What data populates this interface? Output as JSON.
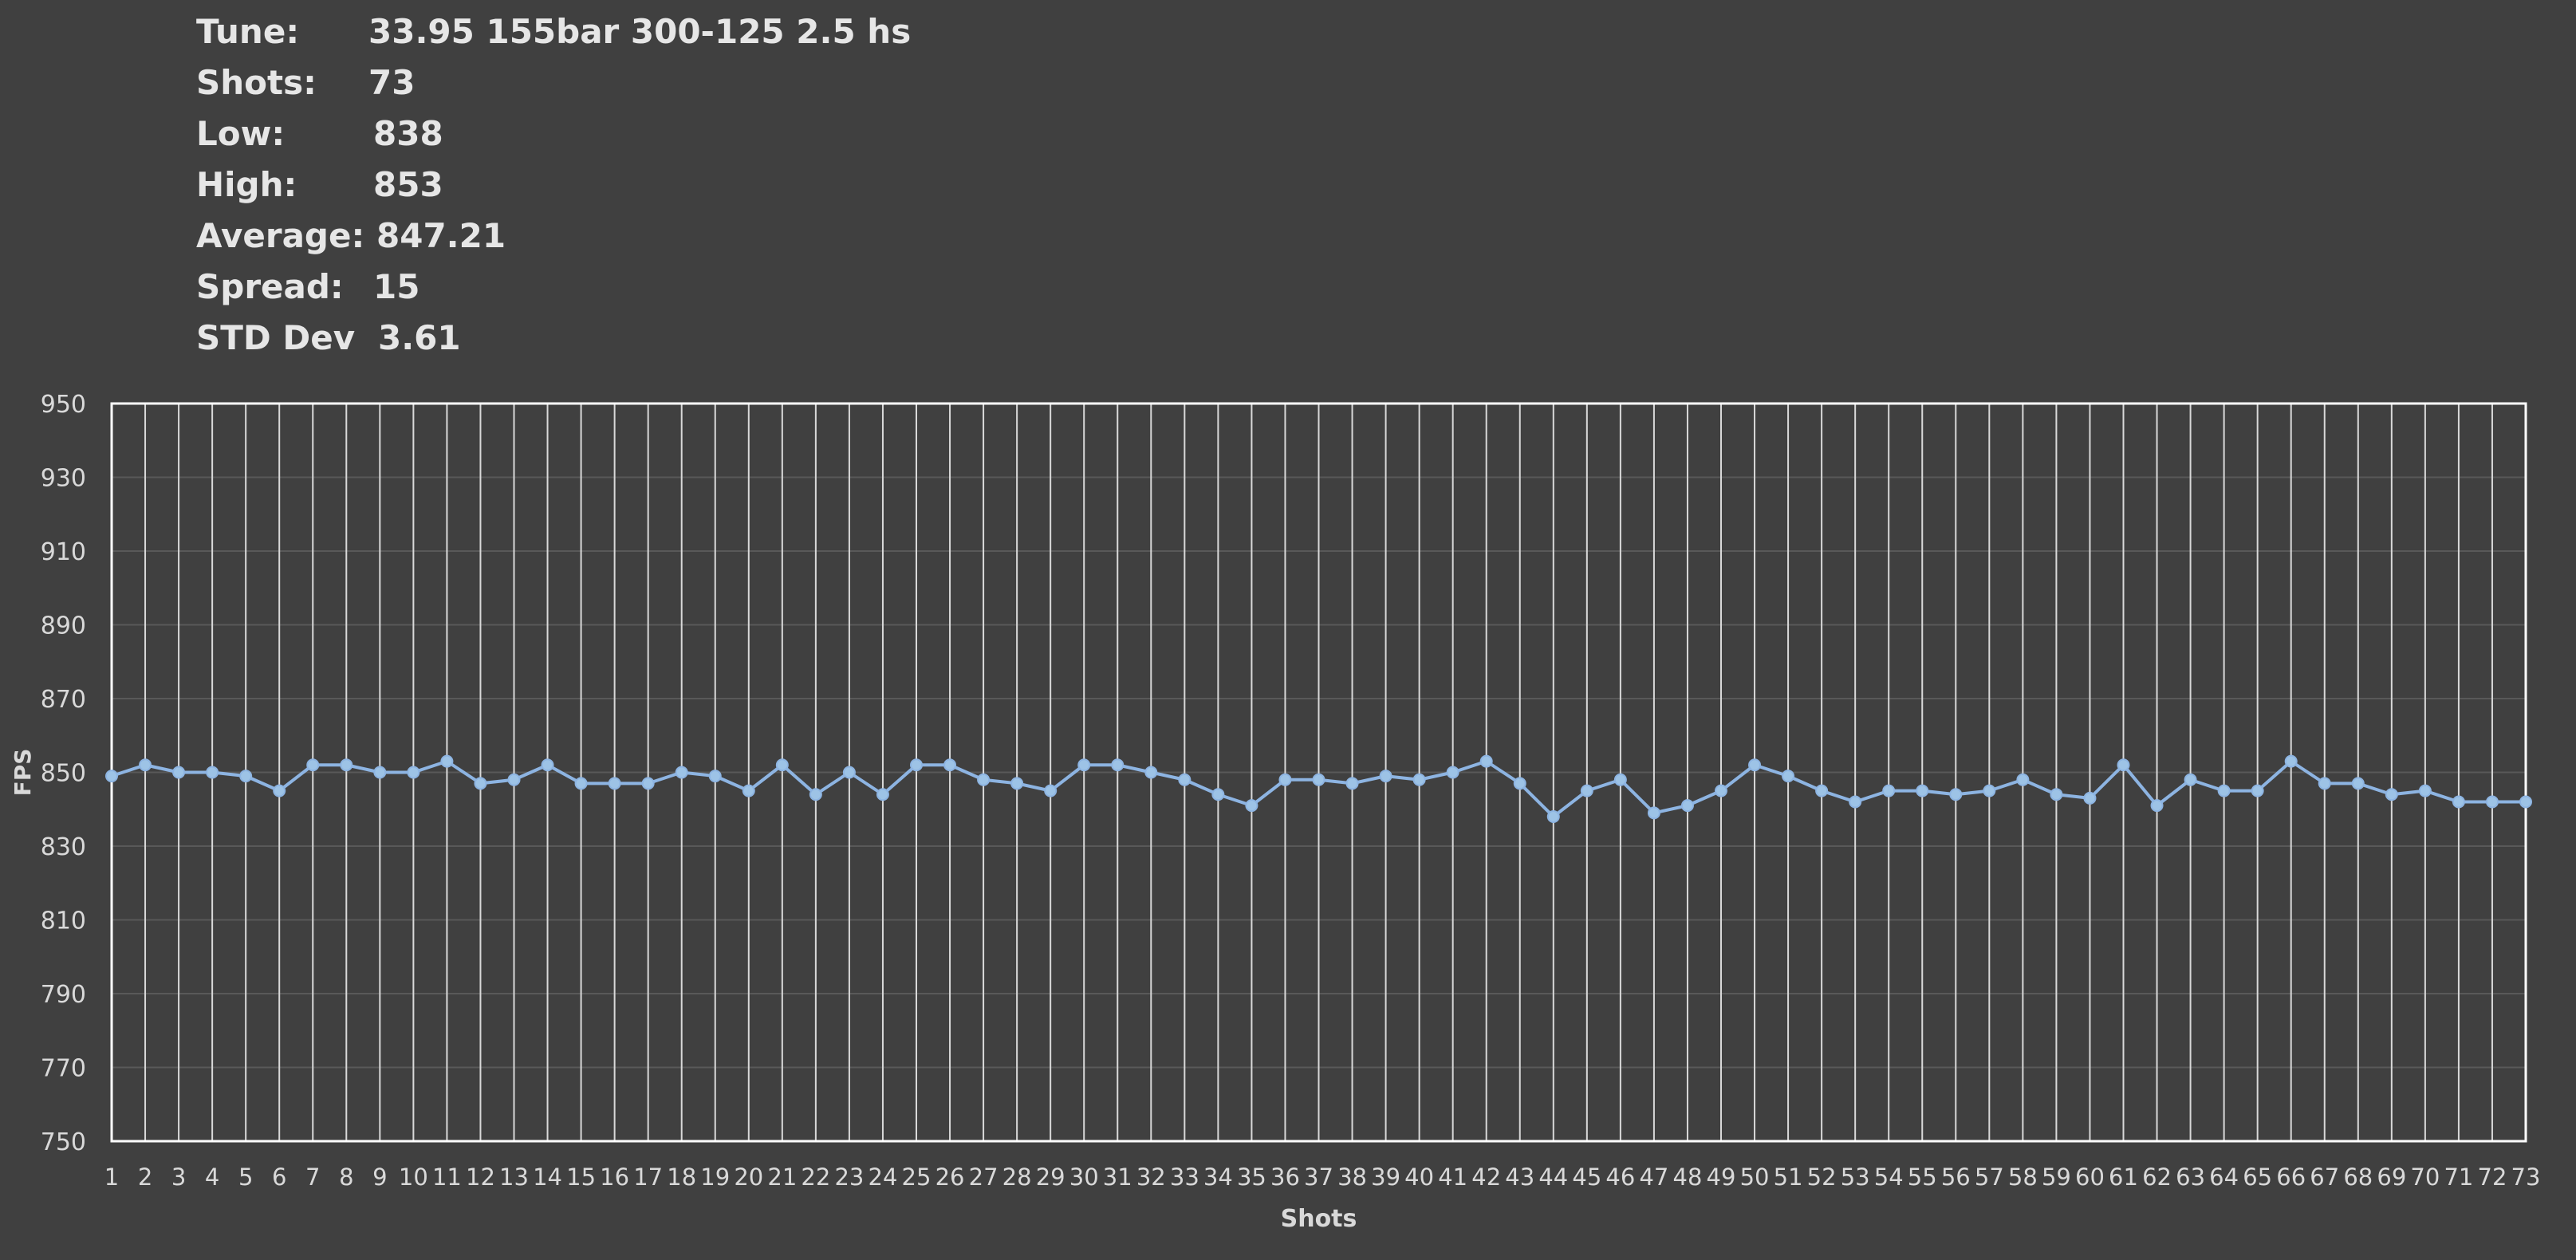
{
  "stats": [
    {
      "label": "Tune:",
      "value": "33.95 155bar 300-125 2.5 hs"
    },
    {
      "label": "Shots:",
      "value": "73"
    },
    {
      "label": "Low:",
      "value": "838"
    },
    {
      "label": "High:",
      "value": "853"
    },
    {
      "label": "Average:",
      "value": "847.21"
    },
    {
      "label": "Spread:",
      "value": "15"
    },
    {
      "label": "STD Dev",
      "value": "3.61"
    }
  ],
  "colors": {
    "background": "#404040",
    "line": "#8db4e2",
    "marker_fill": "#9dc3e6",
    "grid": "#595959",
    "vgrid": "#d9d9d9",
    "axis": "#ffffff",
    "text": "#d9d9d9"
  },
  "chart_data": {
    "type": "line",
    "title": "",
    "xlabel": "Shots",
    "ylabel": "FPS",
    "ylim": [
      750,
      950
    ],
    "yticks": [
      750,
      770,
      790,
      810,
      830,
      850,
      870,
      890,
      910,
      930,
      950
    ],
    "x": [
      1,
      2,
      3,
      4,
      5,
      6,
      7,
      8,
      9,
      10,
      11,
      12,
      13,
      14,
      15,
      16,
      17,
      18,
      19,
      20,
      21,
      22,
      23,
      24,
      25,
      26,
      27,
      28,
      29,
      30,
      31,
      32,
      33,
      34,
      35,
      36,
      37,
      38,
      39,
      40,
      41,
      42,
      43,
      44,
      45,
      46,
      47,
      48,
      49,
      50,
      51,
      52,
      53,
      54,
      55,
      56,
      57,
      58,
      59,
      60,
      61,
      62,
      63,
      64,
      65,
      66,
      67,
      68,
      69,
      70,
      71,
      72,
      73
    ],
    "series": [
      {
        "values": [
          849,
          852,
          850,
          850,
          849,
          845,
          852,
          852,
          850,
          850,
          853,
          847,
          848,
          852,
          847,
          847,
          847,
          850,
          849,
          845,
          852,
          844,
          850,
          844,
          852,
          852,
          848,
          847,
          845,
          852,
          852,
          850,
          848,
          844,
          841,
          848,
          848,
          847,
          849,
          848,
          850,
          853,
          847,
          838,
          845,
          848,
          839,
          841,
          845,
          852,
          849,
          845,
          842,
          845,
          845,
          844,
          845,
          848,
          844,
          843,
          852,
          841,
          848,
          845,
          845,
          853,
          847,
          847,
          844,
          845,
          842,
          842,
          842
        ]
      }
    ],
    "grid": true,
    "legend": "none"
  }
}
